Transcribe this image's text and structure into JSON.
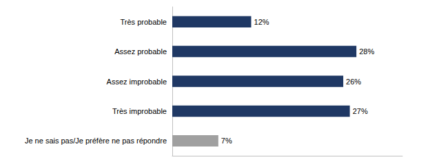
{
  "chart_data": {
    "type": "bar",
    "orientation": "horizontal",
    "categories": [
      "Très probable",
      "Assez probable",
      "Assez improbable",
      "Très improbable",
      "Je ne sais pas/Je préfère ne pas répondre"
    ],
    "values": [
      12,
      28,
      26,
      27,
      7
    ],
    "value_labels": [
      "12%",
      "28%",
      "26%",
      "27%",
      "7%"
    ],
    "colors": [
      "#1F3864",
      "#1F3864",
      "#1F3864",
      "#1F3864",
      "#A0A0A0"
    ],
    "xlim": [
      0,
      35
    ],
    "data_labels": true,
    "tick_labels": "y",
    "grid": false
  }
}
